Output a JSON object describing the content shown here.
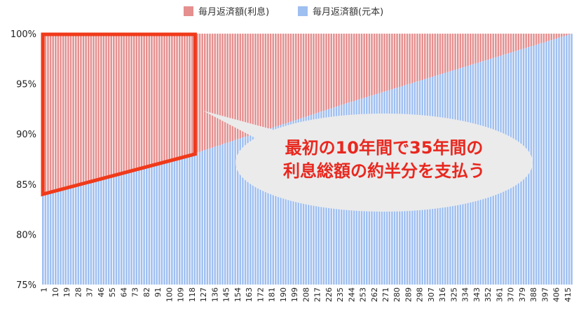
{
  "legend": {
    "interest_label": "毎月返済額(利息)",
    "principal_label": "毎月返済額(元本)"
  },
  "callout": {
    "line1": "最初の10年間で35年間の",
    "line2": "利息総額の約半分を支払う"
  },
  "colors": {
    "interest": "#e58f8f",
    "principal": "#9fbff0",
    "highlight": "#f03a1a",
    "callout_bg": "#ebebeb",
    "callout_text": "#e8281f"
  },
  "chart_data": {
    "type": "bar",
    "stacked": true,
    "percent_stacked": true,
    "x_start": 1,
    "x_end": 420,
    "x_tick_labels": [
      "1",
      "10",
      "19",
      "28",
      "37",
      "46",
      "55",
      "64",
      "73",
      "82",
      "91",
      "100",
      "109",
      "118",
      "127",
      "136",
      "145",
      "154",
      "163",
      "172",
      "181",
      "190",
      "199",
      "208",
      "217",
      "226",
      "235",
      "244",
      "253",
      "262",
      "271",
      "280",
      "289",
      "298",
      "307",
      "316",
      "325",
      "334",
      "343",
      "352",
      "361",
      "370",
      "379",
      "388",
      "397",
      "406",
      "415"
    ],
    "y_tick_labels": [
      "75%",
      "80%",
      "85%",
      "90%",
      "95%",
      "100%"
    ],
    "ylim": [
      75,
      100
    ],
    "series": [
      {
        "name": "毎月返済額(元本)",
        "color": "#9fbff0",
        "principal_share_at_month": [
          [
            1,
            84.0
          ],
          [
            120,
            88.0
          ],
          [
            240,
            93.0
          ],
          [
            420,
            100.0
          ]
        ]
      },
      {
        "name": "毎月返済額(利息)",
        "color": "#e58f8f",
        "interest_share_at_month": [
          [
            1,
            16.0
          ],
          [
            120,
            12.0
          ],
          [
            240,
            7.0
          ],
          [
            420,
            0.0
          ]
        ]
      }
    ],
    "highlight_range": {
      "from_month": 1,
      "to_month": 120
    },
    "legend_position": "top",
    "grid": false
  }
}
